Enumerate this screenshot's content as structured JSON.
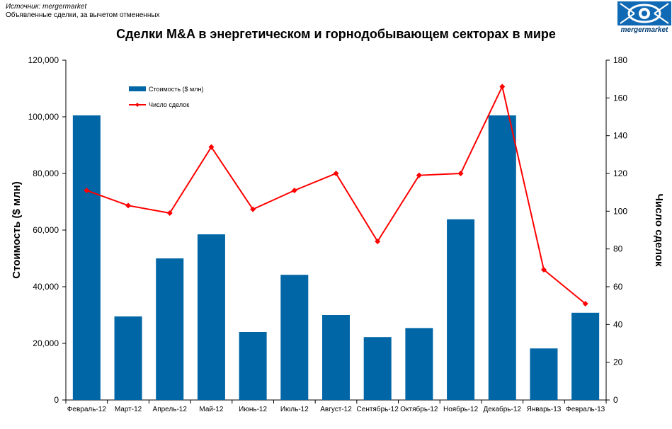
{
  "source": {
    "line1": "Источник: mergermarket",
    "line2": "Объявленные сделки, за вычетом отмененных"
  },
  "title": "Сделки M&A в энергетическом и горнодобывающем секторах в мире",
  "logo": {
    "text": "mergermarket",
    "icon": "eye-icon"
  },
  "chart_data": {
    "type": "bar",
    "title": "Сделки M&A в энергетическом и горнодобывающем секторах в мире",
    "categories": [
      "Февраль-12",
      "Март-12",
      "Апрель-12",
      "Май-12",
      "Июнь-12",
      "Июль-12",
      "Август-12",
      "Сентябрь-12",
      "Октябрь-12",
      "Ноябрь-12",
      "Декабрь-12",
      "Январь-13",
      "Февраль-13"
    ],
    "series": [
      {
        "name": "Стоимость ($ млн)",
        "type": "bar",
        "axis": "left",
        "values": [
          100500,
          29500,
          50000,
          58500,
          24000,
          44200,
          30000,
          22200,
          25400,
          63800,
          100500,
          18200,
          30800
        ]
      },
      {
        "name": "Число сделок",
        "type": "line",
        "axis": "right",
        "values": [
          111,
          103,
          99,
          134,
          101,
          111,
          120,
          84,
          119,
          120,
          166,
          69,
          51
        ]
      }
    ],
    "ylabel": "Стоимость  ($ млн)",
    "ylabel_right": "Число сделок",
    "ylim": [
      0,
      120000
    ],
    "ylim_right": [
      0,
      180
    ],
    "y_ticks": [
      "0",
      "20,000",
      "40,000",
      "60,000",
      "80,000",
      "100,000",
      "120,000"
    ],
    "y_ticks_right": [
      "0",
      "20",
      "40",
      "60",
      "80",
      "100",
      "120",
      "140",
      "160",
      "180"
    ],
    "grid": false,
    "legend_position": "top-left",
    "colors": {
      "bar": "#0066a6",
      "line": "#ff0000"
    }
  }
}
